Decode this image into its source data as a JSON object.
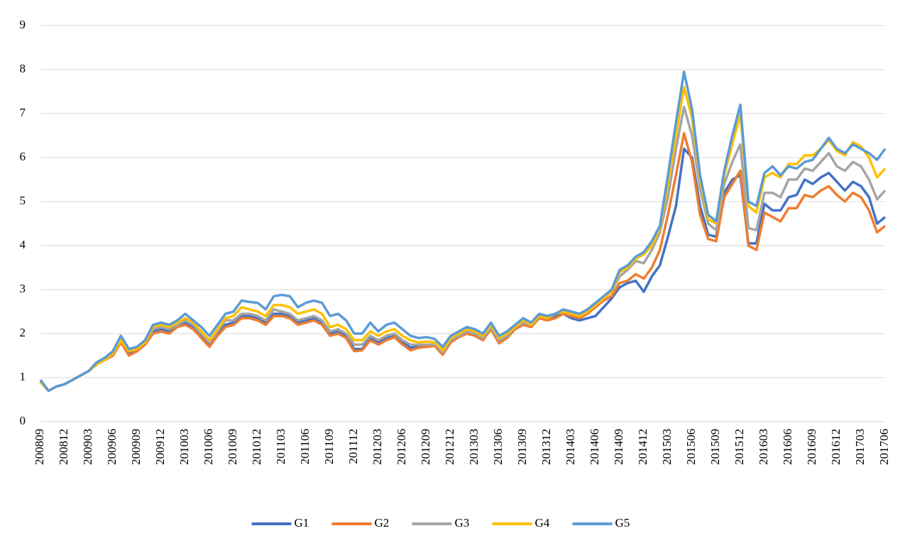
{
  "chart_data": {
    "type": "line",
    "categories": [
      "200809",
      null,
      null,
      "200812",
      null,
      null,
      "200903",
      null,
      null,
      "200906",
      null,
      null,
      "200909",
      null,
      null,
      "200912",
      null,
      null,
      "201003",
      null,
      null,
      "201006",
      null,
      null,
      "201009",
      null,
      null,
      "201012",
      null,
      null,
      "201103",
      null,
      null,
      "201106",
      null,
      null,
      "201109",
      null,
      null,
      "201112",
      null,
      null,
      "201203",
      null,
      null,
      "201206",
      null,
      null,
      "201209",
      null,
      null,
      "201212",
      null,
      null,
      "201303",
      null,
      null,
      "201306",
      null,
      null,
      "201309",
      null,
      null,
      "201312",
      null,
      null,
      "201403",
      null,
      null,
      "201406",
      null,
      null,
      "201409",
      null,
      null,
      "201412",
      null,
      null,
      "201503",
      null,
      null,
      "201506",
      null,
      null,
      "201509",
      null,
      null,
      "201512",
      null,
      null,
      "201603",
      null,
      null,
      "201606",
      null,
      null,
      "201609",
      null,
      null,
      "201612",
      null,
      null,
      "201703",
      null,
      null,
      "201706"
    ],
    "series": [
      {
        "name": "G1",
        "color": "#4472c4",
        "values": [
          0.9,
          0.7,
          0.8,
          0.85,
          0.95,
          1.05,
          1.15,
          1.3,
          1.4,
          1.55,
          1.85,
          1.55,
          1.6,
          1.75,
          2.05,
          2.1,
          2.05,
          2.2,
          2.25,
          2.15,
          1.95,
          1.75,
          2.0,
          2.2,
          2.25,
          2.4,
          2.4,
          2.35,
          2.25,
          2.45,
          2.45,
          2.4,
          2.25,
          2.3,
          2.35,
          2.25,
          2.0,
          2.05,
          1.95,
          1.65,
          1.65,
          1.9,
          1.8,
          1.9,
          1.95,
          1.8,
          1.68,
          1.72,
          1.72,
          1.75,
          1.55,
          1.85,
          1.95,
          2.05,
          2.0,
          1.88,
          2.15,
          1.82,
          1.95,
          2.15,
          2.25,
          2.2,
          2.4,
          2.35,
          2.4,
          2.45,
          2.35,
          2.3,
          2.35,
          2.4,
          2.6,
          2.8,
          3.05,
          3.15,
          3.2,
          2.95,
          3.3,
          3.55,
          4.2,
          4.9,
          6.2,
          6.0,
          4.9,
          4.25,
          4.2,
          5.2,
          5.5,
          5.6,
          4.05,
          4.05,
          4.95,
          4.8,
          4.8,
          5.1,
          5.15,
          5.5,
          5.4,
          5.55,
          5.65,
          5.45,
          5.25,
          5.45,
          5.35,
          5.1,
          4.5,
          4.65
        ]
      },
      {
        "name": "G2",
        "color": "#ed7d31",
        "values": [
          0.9,
          0.7,
          0.8,
          0.85,
          0.95,
          1.05,
          1.15,
          1.3,
          1.4,
          1.5,
          1.8,
          1.5,
          1.6,
          1.75,
          2.0,
          2.05,
          2.0,
          2.15,
          2.2,
          2.1,
          1.9,
          1.7,
          1.95,
          2.15,
          2.2,
          2.35,
          2.35,
          2.3,
          2.2,
          2.4,
          2.4,
          2.35,
          2.2,
          2.25,
          2.3,
          2.2,
          1.95,
          2.0,
          1.9,
          1.6,
          1.62,
          1.85,
          1.75,
          1.85,
          1.92,
          1.75,
          1.62,
          1.68,
          1.7,
          1.72,
          1.52,
          1.8,
          1.92,
          2.0,
          1.95,
          1.85,
          2.1,
          1.78,
          1.9,
          2.1,
          2.2,
          2.15,
          2.35,
          2.3,
          2.35,
          2.45,
          2.4,
          2.35,
          2.45,
          2.6,
          2.75,
          2.85,
          3.15,
          3.2,
          3.35,
          3.25,
          3.5,
          3.9,
          4.7,
          5.6,
          6.55,
          5.9,
          4.7,
          4.15,
          4.1,
          5.1,
          5.4,
          5.7,
          4.0,
          3.9,
          4.75,
          4.65,
          4.55,
          4.85,
          4.85,
          5.15,
          5.1,
          5.25,
          5.35,
          5.15,
          5.0,
          5.2,
          5.1,
          4.8,
          4.3,
          4.45
        ]
      },
      {
        "name": "G3",
        "color": "#a5a5a5",
        "values": [
          0.9,
          0.7,
          0.8,
          0.85,
          0.95,
          1.05,
          1.15,
          1.3,
          1.4,
          1.55,
          1.85,
          1.6,
          1.65,
          1.8,
          2.1,
          2.15,
          2.1,
          2.2,
          2.3,
          2.2,
          2.0,
          1.8,
          2.05,
          2.3,
          2.3,
          2.45,
          2.45,
          2.4,
          2.3,
          2.55,
          2.5,
          2.45,
          2.3,
          2.35,
          2.4,
          2.3,
          2.05,
          2.1,
          2.0,
          1.75,
          1.75,
          1.95,
          1.85,
          1.95,
          2.0,
          1.85,
          1.75,
          1.75,
          1.75,
          1.75,
          1.58,
          1.85,
          1.95,
          2.05,
          2.0,
          1.9,
          2.15,
          1.85,
          1.95,
          2.15,
          2.25,
          2.2,
          2.4,
          2.35,
          2.45,
          2.5,
          2.45,
          2.4,
          2.5,
          2.65,
          2.8,
          2.95,
          3.3,
          3.45,
          3.65,
          3.6,
          3.9,
          4.3,
          5.1,
          6.2,
          7.15,
          6.5,
          5.3,
          4.5,
          4.35,
          5.4,
          5.9,
          6.3,
          4.4,
          4.35,
          5.2,
          5.2,
          5.1,
          5.5,
          5.5,
          5.75,
          5.7,
          5.9,
          6.1,
          5.8,
          5.7,
          5.9,
          5.8,
          5.5,
          5.05,
          5.25
        ]
      },
      {
        "name": "G4",
        "color": "#ffc000",
        "values": [
          0.9,
          0.7,
          0.8,
          0.85,
          0.95,
          1.05,
          1.15,
          1.3,
          1.4,
          1.55,
          1.85,
          1.6,
          1.65,
          1.8,
          2.15,
          2.2,
          2.15,
          2.25,
          2.35,
          2.25,
          2.05,
          1.85,
          2.1,
          2.35,
          2.4,
          2.6,
          2.55,
          2.5,
          2.4,
          2.65,
          2.65,
          2.6,
          2.45,
          2.5,
          2.55,
          2.45,
          2.15,
          2.2,
          2.1,
          1.85,
          1.85,
          2.05,
          1.95,
          2.05,
          2.1,
          1.95,
          1.85,
          1.8,
          1.82,
          1.8,
          1.62,
          1.9,
          2.0,
          2.1,
          2.05,
          1.95,
          2.2,
          1.9,
          2.0,
          2.15,
          2.3,
          2.2,
          2.4,
          2.35,
          2.45,
          2.5,
          2.45,
          2.4,
          2.5,
          2.65,
          2.8,
          2.95,
          3.4,
          3.5,
          3.7,
          3.8,
          4.0,
          4.4,
          5.4,
          6.5,
          7.6,
          6.9,
          5.5,
          4.6,
          4.5,
          5.6,
          6.3,
          7.0,
          4.9,
          4.75,
          5.55,
          5.65,
          5.55,
          5.85,
          5.85,
          6.05,
          6.05,
          6.2,
          6.4,
          6.15,
          6.05,
          6.35,
          6.25,
          6.0,
          5.55,
          5.75
        ]
      },
      {
        "name": "G5",
        "color": "#5b9bd5",
        "values": [
          0.95,
          0.7,
          0.8,
          0.85,
          0.95,
          1.05,
          1.15,
          1.35,
          1.45,
          1.6,
          1.95,
          1.65,
          1.7,
          1.85,
          2.2,
          2.25,
          2.2,
          2.3,
          2.45,
          2.3,
          2.15,
          1.95,
          2.2,
          2.45,
          2.5,
          2.75,
          2.72,
          2.7,
          2.55,
          2.85,
          2.88,
          2.85,
          2.6,
          2.7,
          2.75,
          2.7,
          2.4,
          2.45,
          2.3,
          2.0,
          2.0,
          2.25,
          2.05,
          2.2,
          2.25,
          2.1,
          1.95,
          1.9,
          1.92,
          1.88,
          1.7,
          1.95,
          2.05,
          2.15,
          2.1,
          2.0,
          2.25,
          1.95,
          2.05,
          2.2,
          2.35,
          2.25,
          2.45,
          2.4,
          2.45,
          2.55,
          2.5,
          2.45,
          2.55,
          2.7,
          2.85,
          3.0,
          3.45,
          3.55,
          3.75,
          3.85,
          4.1,
          4.45,
          5.6,
          6.8,
          7.95,
          7.1,
          5.6,
          4.7,
          4.55,
          5.7,
          6.5,
          7.2,
          5.0,
          4.9,
          5.65,
          5.8,
          5.6,
          5.8,
          5.75,
          5.9,
          5.95,
          6.2,
          6.45,
          6.2,
          6.1,
          6.3,
          6.2,
          6.1,
          5.95,
          6.2
        ]
      }
    ],
    "ylim": [
      0,
      9
    ],
    "yticks": [
      0,
      1,
      2,
      3,
      4,
      5,
      6,
      7,
      8,
      9
    ],
    "grid": true,
    "legend": "bottom"
  }
}
